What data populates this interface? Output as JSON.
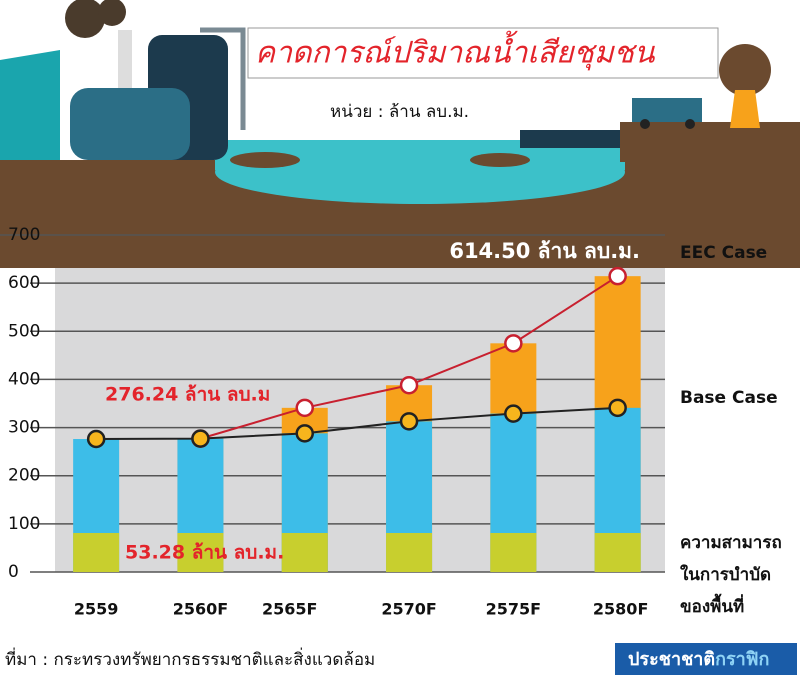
{
  "chart_data": {
    "type": "bar-line",
    "title": "คาดการณ์ปริมาณน้ำเสียชุมชน",
    "subtitle": "หน่วย : ล้าน ลบ.ม.",
    "categories": [
      "2559",
      "2560F",
      "2565F",
      "2570F",
      "2575F",
      "2580F"
    ],
    "series": [
      {
        "name": "EEC Case",
        "color": "#f7a21b",
        "line_color": "#c8202f",
        "values": [
          null,
          277,
          341,
          388,
          475,
          614.5
        ]
      },
      {
        "name": "Base Case",
        "color": "#3dbde8",
        "line_color": "#222222",
        "values": [
          276.24,
          277,
          288,
          313,
          329,
          341
        ]
      },
      {
        "name": "ความสามารถในการบำบัดของพื้นที่",
        "color": "#c8cf2e",
        "values": [
          81,
          81,
          81,
          81,
          81,
          81
        ]
      }
    ],
    "annotations": [
      "614.50 ล้าน ลบ.ม.",
      "276.24 ล้าน ลบ.ม",
      "53.28  ล้าน ลบ.ม."
    ],
    "ylim": [
      0,
      700
    ],
    "yticks": [
      0,
      100,
      200,
      300,
      400,
      500,
      600,
      700
    ],
    "grid": true
  },
  "source": "ที่มา : กระทรวงทรัพยากรธรรมชาติและสิ่งแวดล้อม",
  "brand": [
    "ประชาชาติ",
    "กราฟิก"
  ]
}
